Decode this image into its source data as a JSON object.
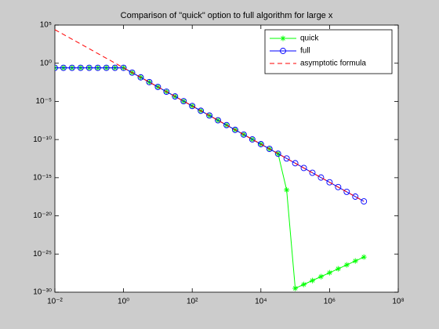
{
  "chart_data": {
    "type": "line",
    "title": "Comparison of \"quick\" option to full algorithm for large x",
    "x": [
      0.01,
      0.01778,
      0.03162,
      0.05623,
      0.1,
      0.1778,
      0.3162,
      0.5623,
      1,
      1.778,
      3.162,
      5.623,
      10,
      17.78,
      31.62,
      56.23,
      100,
      177.8,
      316.2,
      562.3,
      1000,
      1778,
      3162,
      5623,
      10000,
      17780,
      31620,
      56230,
      100000,
      177800,
      316200,
      562300,
      1000000,
      1778000,
      3162000,
      5623000,
      10000000
    ],
    "series": [
      {
        "name": "quick",
        "color": "#00ff00",
        "marker": "star",
        "values": [
          0.25,
          0.25,
          0.25,
          0.25,
          0.25,
          0.25,
          0.25,
          0.25,
          0.25,
          0.05928,
          0.01406,
          0.003335,
          0.0007906,
          0.0001875,
          4.446e-05,
          1.054e-05,
          2.5e-06,
          5.928e-07,
          1.406e-07,
          3.335e-08,
          7.906e-09,
          1.875e-09,
          4.446e-10,
          1.054e-10,
          2.5e-11,
          5.928e-12,
          1.406e-12,
          2.5e-17,
          3.2e-30,
          1.03e-29,
          3.35e-29,
          1.1e-28,
          3.55e-28,
          1.15e-27,
          3.76e-27,
          1.23e-26,
          3.98e-26
        ]
      },
      {
        "name": "full",
        "color": "#0000ff",
        "marker": "circle",
        "values": [
          0.25,
          0.25,
          0.25,
          0.25,
          0.25,
          0.25,
          0.25,
          0.25,
          0.25,
          0.05928,
          0.01406,
          0.003335,
          0.0007906,
          0.0001875,
          4.446e-05,
          1.054e-05,
          2.5e-06,
          5.928e-07,
          1.406e-07,
          3.335e-08,
          7.906e-09,
          1.875e-09,
          4.446e-10,
          1.054e-10,
          2.5e-11,
          5.928e-12,
          1.406e-12,
          3.335e-13,
          7.906e-14,
          1.875e-14,
          4.446e-15,
          1.054e-15,
          2.5e-16,
          5.928e-17,
          1.406e-17,
          3.335e-18,
          7.906e-19
        ]
      },
      {
        "name": "asymptotic formula",
        "color": "#ff0000",
        "dash": true,
        "values": [
          25000,
          5929,
          1406,
          333.5,
          79.06,
          18.75,
          4.446,
          1.054,
          0.25,
          0.05928,
          0.01406,
          0.003335,
          0.0007906,
          0.0001875,
          4.446e-05,
          1.054e-05,
          2.5e-06,
          5.928e-07,
          1.406e-07,
          3.335e-08,
          7.906e-09,
          1.875e-09,
          4.446e-10,
          1.054e-10,
          2.5e-11,
          5.928e-12,
          1.406e-12,
          3.335e-13,
          7.906e-14,
          1.875e-14,
          4.446e-15,
          1.054e-15,
          2.5e-16,
          5.928e-17,
          1.406e-17,
          3.335e-18,
          7.906e-19
        ]
      }
    ],
    "xscale": "log",
    "yscale": "log",
    "xlim": [
      0.01,
      100000000
    ],
    "ylim": [
      1e-30,
      100000
    ],
    "xticks": [
      {
        "value": 0.01,
        "label": "10⁻²"
      },
      {
        "value": 1,
        "label": "10⁰"
      },
      {
        "value": 100,
        "label": "10²"
      },
      {
        "value": 10000,
        "label": "10⁴"
      },
      {
        "value": 1000000,
        "label": "10⁶"
      },
      {
        "value": 100000000,
        "label": "10⁸"
      }
    ],
    "yticks": [
      {
        "value": 1e-30,
        "label": "10⁻³⁰"
      },
      {
        "value": 1e-25,
        "label": "10⁻²⁵"
      },
      {
        "value": 1e-20,
        "label": "10⁻²⁰"
      },
      {
        "value": 1e-15,
        "label": "10⁻¹⁵"
      },
      {
        "value": 1e-10,
        "label": "10⁻¹⁰"
      },
      {
        "value": 1e-05,
        "label": "10⁻⁵"
      },
      {
        "value": 1,
        "label": "10⁰"
      },
      {
        "value": 100000,
        "label": "10⁵"
      }
    ],
    "legend": "northeast",
    "grid": false
  }
}
